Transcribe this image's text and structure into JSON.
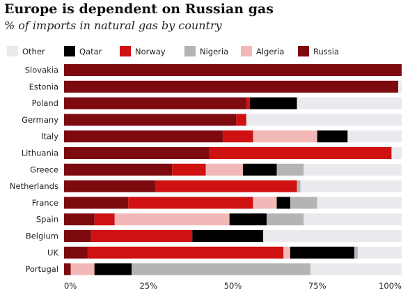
{
  "chart_data": {
    "type": "bar",
    "orientation": "horizontal",
    "stacked": true,
    "title": "Europe is dependent on Russian gas",
    "subtitle": "% of imports in natural gas by country",
    "xlabel": "",
    "ylabel": "",
    "xlim": [
      0,
      100
    ],
    "x_ticks": [
      "0%",
      "25%",
      "50%",
      "75%",
      "100%"
    ],
    "legend_position": "top",
    "legend": [
      {
        "name": "Other",
        "color": "#eaeaee"
      },
      {
        "name": "Qatar",
        "color": "#000000"
      },
      {
        "name": "Norway",
        "color": "#cf1111"
      },
      {
        "name": "Nigeria",
        "color": "#b4b4b4"
      },
      {
        "name": "Algeria",
        "color": "#f2b8b8"
      },
      {
        "name": "Russia",
        "color": "#7d0a0f"
      }
    ],
    "categories": [
      "Slovakia",
      "Estonia",
      "Poland",
      "Germany",
      "Italy",
      "Lithuania",
      "Greece",
      "Netherlands",
      "France",
      "Spain",
      "Belgium",
      "UK",
      "Portugal"
    ],
    "series": [
      {
        "name": "Russia",
        "color": "#7d0a0f",
        "values": [
          100,
          99,
          54,
          51,
          47,
          43,
          32,
          27,
          19,
          9,
          8,
          7,
          2
        ]
      },
      {
        "name": "Norway",
        "color": "#cf1111",
        "values": [
          0,
          0,
          1,
          3,
          9,
          54,
          10,
          42,
          37,
          6,
          30,
          58,
          0
        ]
      },
      {
        "name": "Algeria",
        "color": "#f2b8b8",
        "values": [
          0,
          0,
          0,
          0,
          19,
          0,
          11,
          0,
          7,
          34,
          0,
          2,
          7
        ]
      },
      {
        "name": "Qatar",
        "color": "#000000",
        "values": [
          0,
          0,
          14,
          0,
          9,
          0,
          10,
          0,
          4,
          11,
          21,
          19,
          11
        ]
      },
      {
        "name": "Nigeria",
        "color": "#b4b4b4",
        "values": [
          0,
          0,
          0,
          0,
          0,
          0,
          8,
          1,
          8,
          11,
          0,
          1,
          53
        ]
      },
      {
        "name": "Other",
        "color": "#eaeaee",
        "values": [
          0,
          1,
          31,
          46,
          16,
          3,
          29,
          30,
          25,
          29,
          41,
          13,
          27
        ]
      }
    ]
  }
}
